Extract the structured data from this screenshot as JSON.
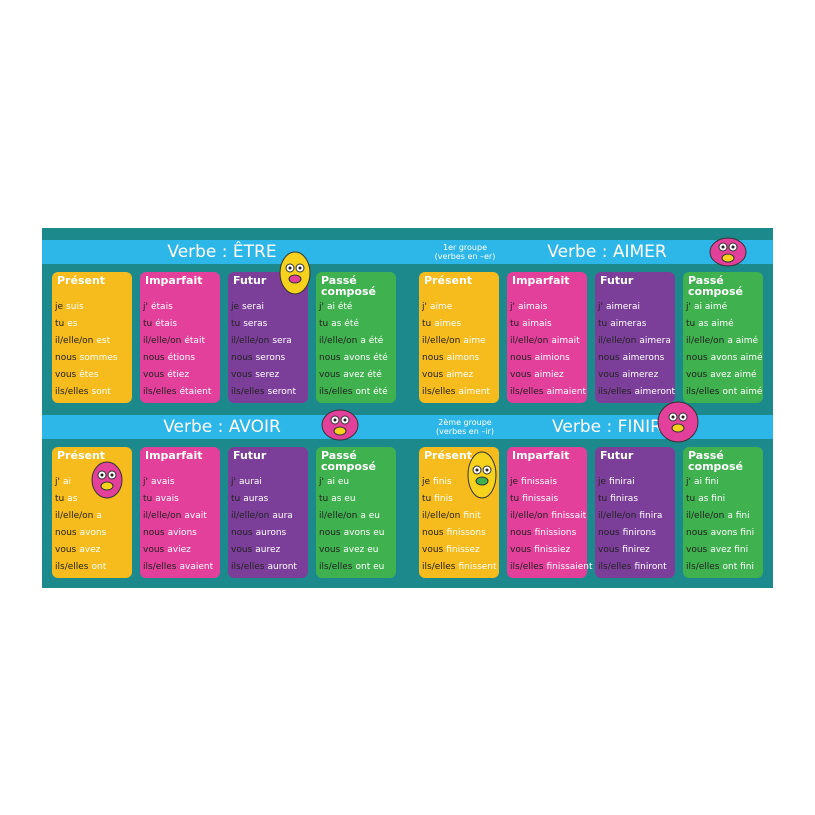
{
  "sections": [
    {
      "title": "Verbe : ÊTRE",
      "tenses": [
        {
          "name": "Présent",
          "rows": [
            {
              "pronoun": "je",
              "verb": "suis"
            },
            {
              "pronoun": "tu",
              "verb": "es"
            },
            {
              "pronoun": "il/elle/on",
              "verb": "est"
            },
            {
              "pronoun": "nous",
              "verb": "sommes"
            },
            {
              "pronoun": "vous",
              "verb": "êtes"
            },
            {
              "pronoun": "ils/elles",
              "verb": "sont"
            }
          ]
        },
        {
          "name": "Imparfait",
          "rows": [
            {
              "pronoun": "j'",
              "verb": "étais"
            },
            {
              "pronoun": "tu",
              "verb": "étais"
            },
            {
              "pronoun": "il/elle/on",
              "verb": "était"
            },
            {
              "pronoun": "nous",
              "verb": "étions"
            },
            {
              "pronoun": "vous",
              "verb": "étiez"
            },
            {
              "pronoun": "ils/elles",
              "verb": "étaient"
            }
          ]
        },
        {
          "name": "Futur",
          "rows": [
            {
              "pronoun": "je",
              "verb": "serai"
            },
            {
              "pronoun": "tu",
              "verb": "seras"
            },
            {
              "pronoun": "il/elle/on",
              "verb": "sera"
            },
            {
              "pronoun": "nous",
              "verb": "serons"
            },
            {
              "pronoun": "vous",
              "verb": "serez"
            },
            {
              "pronoun": "ils/elles",
              "verb": "seront"
            }
          ]
        },
        {
          "name": "Passé composé",
          "rows": [
            {
              "pronoun": "j'",
              "verb": "ai été"
            },
            {
              "pronoun": "tu",
              "verb": "as été"
            },
            {
              "pronoun": "il/elle/on",
              "verb": "a été"
            },
            {
              "pronoun": "nous",
              "verb": "avons été"
            },
            {
              "pronoun": "vous",
              "verb": "avez été"
            },
            {
              "pronoun": "ils/elles",
              "verb": "ont été"
            }
          ]
        }
      ]
    },
    {
      "title": "Verbe : AIMER",
      "group": [
        "1er groupe",
        "(verbes en –er)"
      ],
      "tenses": [
        {
          "name": "Présent",
          "rows": [
            {
              "pronoun": "j'",
              "verb": "aime"
            },
            {
              "pronoun": "tu",
              "verb": "aimes"
            },
            {
              "pronoun": "il/elle/on",
              "verb": "aime"
            },
            {
              "pronoun": "nous",
              "verb": "aimons"
            },
            {
              "pronoun": "vous",
              "verb": "aimez"
            },
            {
              "pronoun": "ils/elles",
              "verb": "aiment"
            }
          ]
        },
        {
          "name": "Imparfait",
          "rows": [
            {
              "pronoun": "j'",
              "verb": "aimais"
            },
            {
              "pronoun": "tu",
              "verb": "aimais"
            },
            {
              "pronoun": "il/elle/on",
              "verb": "aimait"
            },
            {
              "pronoun": "nous",
              "verb": "aimions"
            },
            {
              "pronoun": "vous",
              "verb": "aimiez"
            },
            {
              "pronoun": "ils/elles",
              "verb": "aimaient"
            }
          ]
        },
        {
          "name": "Futur",
          "rows": [
            {
              "pronoun": "j'",
              "verb": "aimerai"
            },
            {
              "pronoun": "tu",
              "verb": "aimeras"
            },
            {
              "pronoun": "il/elle/on",
              "verb": "aimera"
            },
            {
              "pronoun": "nous",
              "verb": "aimerons"
            },
            {
              "pronoun": "vous",
              "verb": "aimerez"
            },
            {
              "pronoun": "ils/elles",
              "verb": "aimeront"
            }
          ]
        },
        {
          "name": "Passé composé",
          "rows": [
            {
              "pronoun": "j'",
              "verb": "ai aimé"
            },
            {
              "pronoun": "tu",
              "verb": "as aimé"
            },
            {
              "pronoun": "il/elle/on",
              "verb": "a aimé"
            },
            {
              "pronoun": "nous",
              "verb": "avons aimé"
            },
            {
              "pronoun": "vous",
              "verb": "avez aimé"
            },
            {
              "pronoun": "ils/elles",
              "verb": "ont aimé"
            }
          ]
        }
      ]
    },
    {
      "title": "Verbe : AVOIR",
      "tenses": [
        {
          "name": "Présent",
          "rows": [
            {
              "pronoun": "j'",
              "verb": "ai"
            },
            {
              "pronoun": "tu",
              "verb": "as"
            },
            {
              "pronoun": "il/elle/on",
              "verb": "a"
            },
            {
              "pronoun": "nous",
              "verb": "avons"
            },
            {
              "pronoun": "vous",
              "verb": "avez"
            },
            {
              "pronoun": "ils/elles",
              "verb": "ont"
            }
          ]
        },
        {
          "name": "Imparfait",
          "rows": [
            {
              "pronoun": "j'",
              "verb": "avais"
            },
            {
              "pronoun": "tu",
              "verb": "avais"
            },
            {
              "pronoun": "il/elle/on",
              "verb": "avait"
            },
            {
              "pronoun": "nous",
              "verb": "avions"
            },
            {
              "pronoun": "vous",
              "verb": "aviez"
            },
            {
              "pronoun": "ils/elles",
              "verb": "avaient"
            }
          ]
        },
        {
          "name": "Futur",
          "rows": [
            {
              "pronoun": "j'",
              "verb": "aurai"
            },
            {
              "pronoun": "tu",
              "verb": "auras"
            },
            {
              "pronoun": "il/elle/on",
              "verb": "aura"
            },
            {
              "pronoun": "nous",
              "verb": "aurons"
            },
            {
              "pronoun": "vous",
              "verb": "aurez"
            },
            {
              "pronoun": "ils/elles",
              "verb": "auront"
            }
          ]
        },
        {
          "name": "Passé composé",
          "rows": [
            {
              "pronoun": "j'",
              "verb": "ai eu"
            },
            {
              "pronoun": "tu",
              "verb": "as eu"
            },
            {
              "pronoun": "il/elle/on",
              "verb": "a eu"
            },
            {
              "pronoun": "nous",
              "verb": "avons eu"
            },
            {
              "pronoun": "vous",
              "verb": "avez eu"
            },
            {
              "pronoun": "ils/elles",
              "verb": "ont eu"
            }
          ]
        }
      ]
    },
    {
      "title": "Verbe : FINIR",
      "group": [
        "2ème groupe",
        "(verbes en –ir)"
      ],
      "tenses": [
        {
          "name": "Présent",
          "rows": [
            {
              "pronoun": "je",
              "verb": "finis"
            },
            {
              "pronoun": "tu",
              "verb": "finis"
            },
            {
              "pronoun": "il/elle/on",
              "verb": "finit"
            },
            {
              "pronoun": "nous",
              "verb": "finissons"
            },
            {
              "pronoun": "vous",
              "verb": "finissez"
            },
            {
              "pronoun": "ils/elles",
              "verb": "finissent"
            }
          ]
        },
        {
          "name": "Imparfait",
          "rows": [
            {
              "pronoun": "je",
              "verb": "finissais"
            },
            {
              "pronoun": "tu",
              "verb": "finissais"
            },
            {
              "pronoun": "il/elle/on",
              "verb": "finissait"
            },
            {
              "pronoun": "nous",
              "verb": "finissions"
            },
            {
              "pronoun": "vous",
              "verb": "finissiez"
            },
            {
              "pronoun": "ils/elles",
              "verb": "finissaient"
            }
          ]
        },
        {
          "name": "Futur",
          "rows": [
            {
              "pronoun": "je",
              "verb": "finirai"
            },
            {
              "pronoun": "tu",
              "verb": "finiras"
            },
            {
              "pronoun": "il/elle/on",
              "verb": "finira"
            },
            {
              "pronoun": "nous",
              "verb": "finirons"
            },
            {
              "pronoun": "vous",
              "verb": "finirez"
            },
            {
              "pronoun": "ils/elles",
              "verb": "finiront"
            }
          ]
        },
        {
          "name": "Passé composé",
          "rows": [
            {
              "pronoun": "j'",
              "verb": "ai fini"
            },
            {
              "pronoun": "tu",
              "verb": "as fini"
            },
            {
              "pronoun": "il/elle/on",
              "verb": "a fini"
            },
            {
              "pronoun": "nous",
              "verb": "avons fini"
            },
            {
              "pronoun": "vous",
              "verb": "avez fini"
            },
            {
              "pronoun": "ils/elles",
              "verb": "ont fini"
            }
          ]
        }
      ]
    }
  ]
}
